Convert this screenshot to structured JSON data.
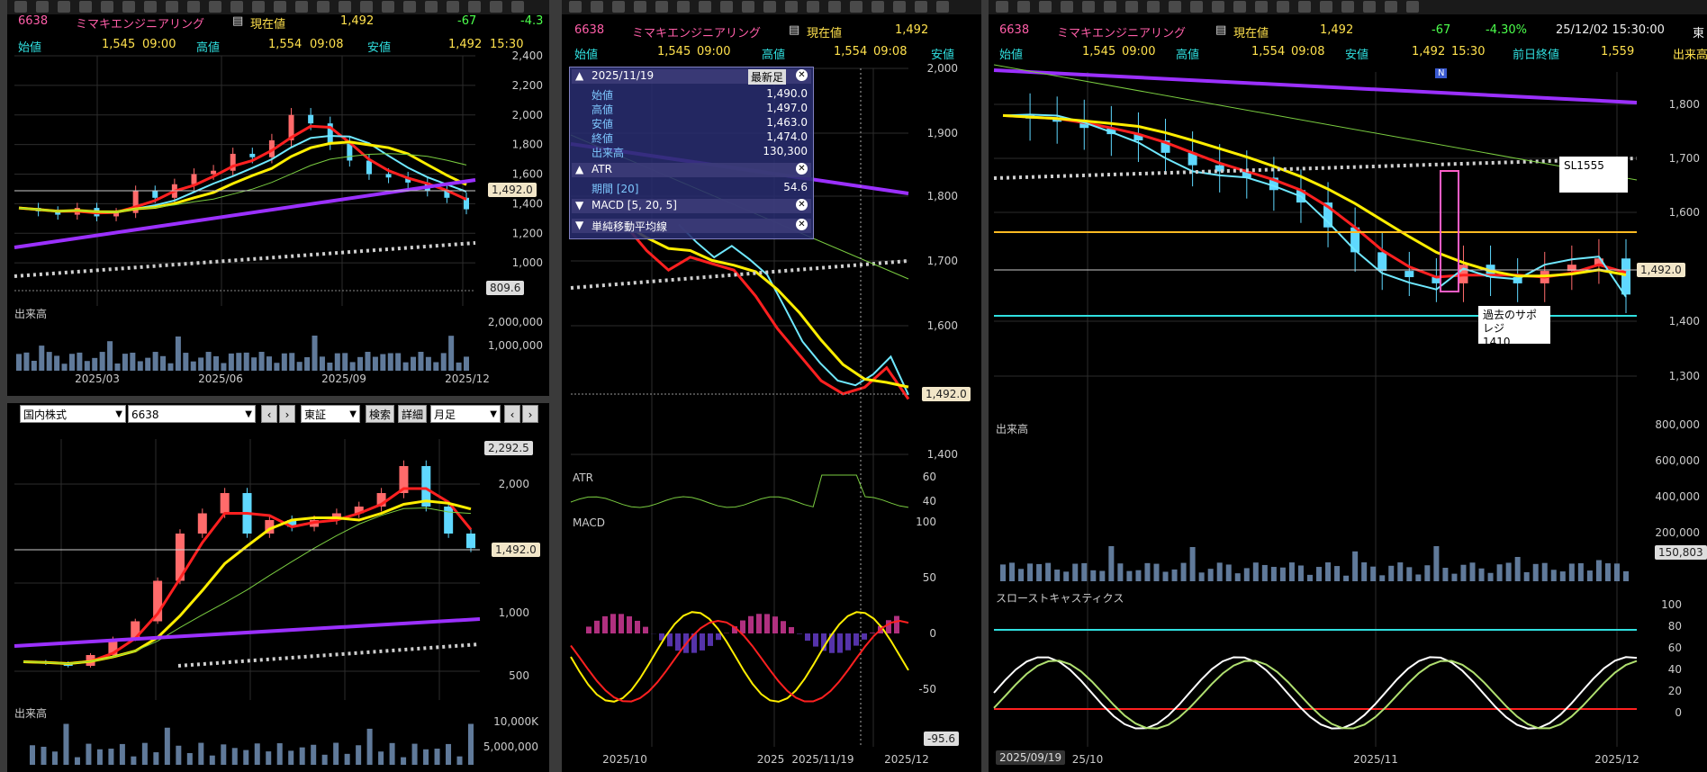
{
  "colors": {
    "bg": "#000000",
    "candle_up": "#ff6b6b",
    "candle_down": "#5fd8ff",
    "ma_red": "#ff2020",
    "ma_yellow": "#ffee00",
    "ma_cyan": "#6fe8ff",
    "ma_purple": "#9b30ff",
    "ma_green": "#7acc40",
    "dotted": "#cfcfcf",
    "volume": "#607a9a"
  },
  "left_top": {
    "code": "6638",
    "name": "ミマキエンジニアリング",
    "price_label": "現在値",
    "price": "1,492",
    "change": "-67",
    "change_pct": "-4.3",
    "open_label": "始値",
    "open": "1,545",
    "open_time": "09:00",
    "high_label": "高値",
    "high": "1,554",
    "high_time": "09:08",
    "low_label": "安値",
    "low": "1,492",
    "low_time": "15:30",
    "y_ticks": [
      "2,400",
      "2,200",
      "2,000",
      "1,800",
      "1,600",
      "1,400",
      "1,200",
      "1,000"
    ],
    "current_tag": "1,492.0",
    "min_tag": "809.6",
    "volume_label": "出来高",
    "vol_ticks": [
      "2,000,000",
      "1,000,000"
    ],
    "x_labels": [
      "2025/03",
      "2025/06",
      "2025/09",
      "2025/12"
    ]
  },
  "left_bottom": {
    "market_select": "国内株式",
    "code_input": "6638",
    "prev_btn": "‹",
    "next_btn": "›",
    "exchange_select": "東証",
    "search_btn": "検索",
    "detail_btn": "詳細",
    "period_select": "月足",
    "max_tag": "2,292.5",
    "y_ticks": [
      "2,000",
      "1,000",
      "500"
    ],
    "current_tag": "1,492.0",
    "volume_label": "出来高",
    "vol_ticks": [
      "10,000K",
      "5,000,000"
    ]
  },
  "middle": {
    "code": "6638",
    "name": "ミマキエンジニアリング",
    "price_label": "現在値",
    "price": "1,492",
    "open_label": "始値",
    "open": "1,545",
    "open_time": "09:00",
    "high_label": "高値",
    "high": "1,554",
    "high_time": "09:08",
    "low_label": "安値",
    "y_ticks": [
      "2,000",
      "1,900",
      "1,800",
      "1,700",
      "1,600",
      "1,400"
    ],
    "current_tag": "1,492.0",
    "atr_label": "ATR",
    "atr_ticks": [
      "60",
      "40"
    ],
    "macd_label": "MACD",
    "macd_ticks": [
      "100",
      "50",
      "0",
      "-50"
    ],
    "macd_tag": "-95.6",
    "x_labels": [
      "2025/10",
      "2025",
      "2025/11/19",
      "2025/12"
    ],
    "popup": {
      "date": "2025/11/19",
      "latest_btn": "最新足",
      "rows": [
        {
          "k": "始値",
          "v": "1,490.0"
        },
        {
          "k": "高値",
          "v": "1,497.0"
        },
        {
          "k": "安値",
          "v": "1,463.0"
        },
        {
          "k": "終値",
          "v": "1,474.0"
        },
        {
          "k": "出来高",
          "v": "130,300"
        }
      ],
      "atr_title": "ATR",
      "atr_period_k": "期間 [20]",
      "atr_period_v": "54.6",
      "macd_title": "MACD [5, 20, 5]",
      "sma_title": "単純移動平均線"
    }
  },
  "right": {
    "code": "6638",
    "name": "ミマキエンジニアリング",
    "price_label": "現在値",
    "price": "1,492",
    "change": "-67",
    "change_pct": "-4.30%",
    "datetime": "25/12/02 15:30:00",
    "extra": "東",
    "open_label": "始値",
    "open": "1,545",
    "open_time": "09:00",
    "high_label": "高値",
    "high": "1,554",
    "high_time": "09:08",
    "low_label": "安値",
    "low": "1,492",
    "low_time": "15:30",
    "prev_label": "前日終値",
    "prev": "1,559",
    "vol_label_cut": "出来高",
    "y_ticks": [
      "1,800",
      "1,700",
      "1,600",
      "1,400",
      "1,300"
    ],
    "current_tag": "1,492.0",
    "note_sl": "SL1555",
    "note_support_line1": "過去のサポレジ",
    "note_support_line2": "1410",
    "badge_n": "N",
    "volume_label": "出来高",
    "vol_ticks": [
      "800,000",
      "600,000",
      "400,000",
      "200,000"
    ],
    "vol_tag": "150,803",
    "stoch_label": "スローストキャスティクス",
    "stoch_ticks": [
      "100",
      "80",
      "60",
      "40",
      "20",
      "0"
    ],
    "x_start_tag": "2025/09/19",
    "x_labels": [
      "25/10",
      "2025/11",
      "2025/12"
    ]
  },
  "chart_data": [
    {
      "type": "line",
      "title": "",
      "series": [
        {
          "name": "",
          "values": [
            1500,
            1480,
            1460,
            1500,
            1450,
            1470,
            1600,
            1560,
            1640,
            1700,
            1720,
            1820,
            1800,
            1900,
            2050,
            2000,
            1880,
            1780,
            1700,
            1680,
            1650,
            1600,
            1560,
            1492
          ]
        }
      ],
      "ylim": [
        1000,
        2400
      ]
    },
    {
      "type": "line",
      "title": "",
      "series": [
        {
          "name": "",
          "values": [
            650,
            640,
            620,
            700,
            820,
            950,
            1250,
            1600,
            1750,
            1900,
            1600,
            1700,
            1650,
            1700,
            1750,
            1800,
            1900,
            2100,
            1800,
            1600,
            1492
          ]
        }
      ],
      "ylim": [
        500,
        2300
      ]
    },
    {
      "type": "line",
      "title": "",
      "series": [
        {
          "name": "",
          "values": [
            1760,
            1720,
            1690,
            1710,
            1700,
            1690,
            1650,
            1600,
            1560,
            1520,
            1500,
            1510,
            1540,
            1492
          ]
        }
      ],
      "ylim": [
        1400,
        2000
      ]
    },
    {
      "type": "line",
      "title": "",
      "series": [
        {
          "name": "",
          "values": [
            1780,
            1775,
            1770,
            1760,
            1750,
            1740,
            1720,
            1700,
            1690,
            1680,
            1660,
            1640,
            1600,
            1560,
            1530,
            1520,
            1510,
            1540,
            1520,
            1510,
            1530,
            1540,
            1550,
            1492
          ]
        }
      ],
      "ylim": [
        1300,
        1850
      ]
    }
  ]
}
